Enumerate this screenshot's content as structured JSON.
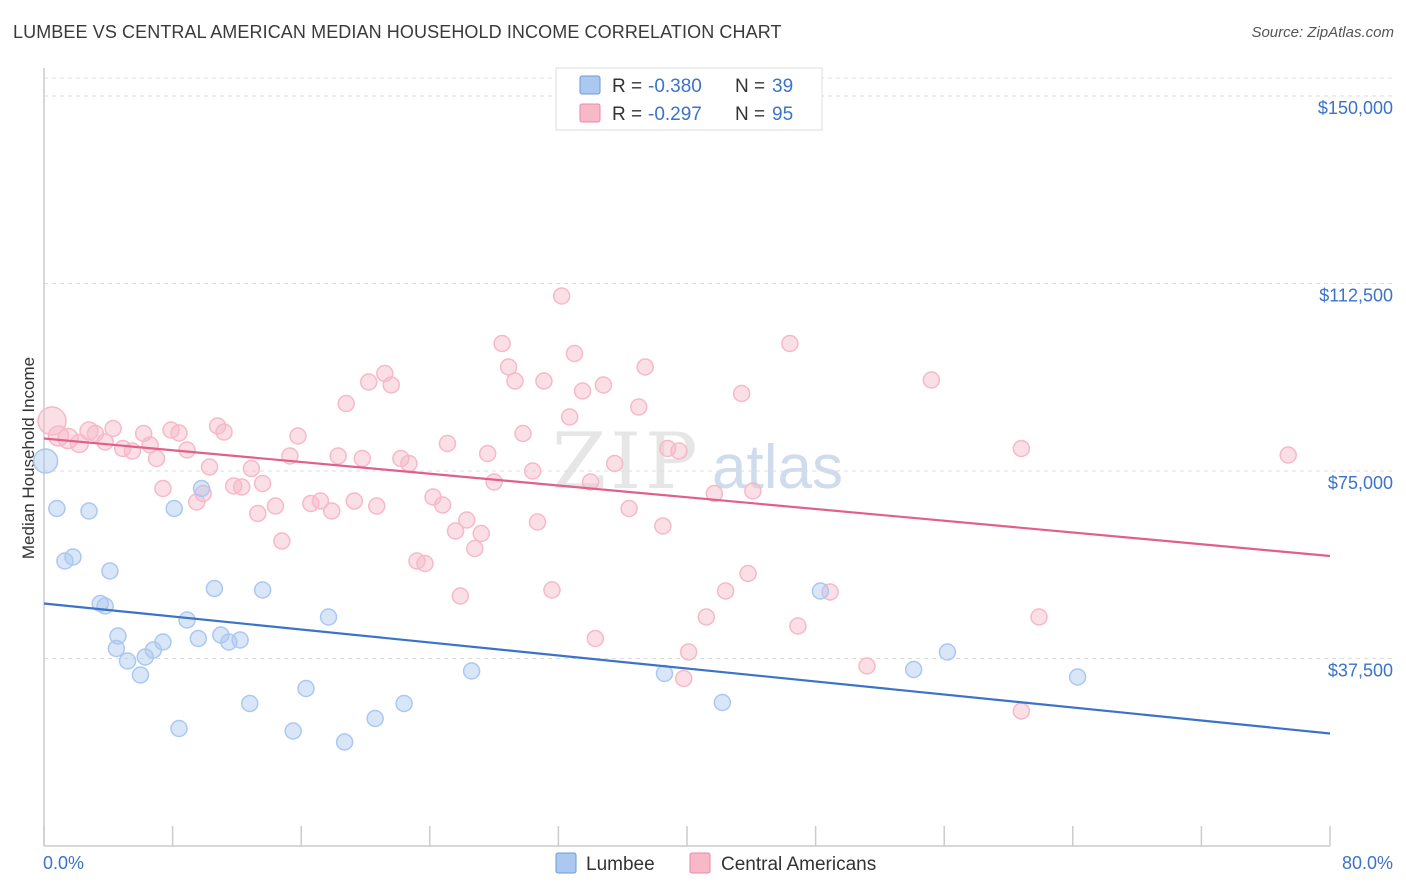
{
  "header": {
    "title": "LUMBEE VS CENTRAL AMERICAN MEDIAN HOUSEHOLD INCOME CORRELATION CHART",
    "source": "Source: ZipAtlas.com"
  },
  "watermark": {
    "zip": "ZIP",
    "atlas": "atlas"
  },
  "legend_top": {
    "rows": [
      {
        "r_label": "R = ",
        "r_value": "-0.380",
        "n_label": "N = ",
        "n_value": "39",
        "color": "#aac8f0"
      },
      {
        "r_label": "R = ",
        "r_value": "-0.297",
        "n_label": "N = ",
        "n_value": "95",
        "color": "#f7b8c8"
      }
    ]
  },
  "legend_bottom": {
    "items": [
      {
        "label": "Lumbee",
        "color": "#aac8f0"
      },
      {
        "label": "Central Americans",
        "color": "#f7b8c8"
      }
    ]
  },
  "chart_data": {
    "type": "scatter",
    "title": "LUMBEE VS CENTRAL AMERICAN MEDIAN HOUSEHOLD INCOME CORRELATION CHART",
    "xlabel": "",
    "ylabel": "Median Household Income",
    "xlim": [
      0,
      80
    ],
    "ylim": [
      0,
      155000
    ],
    "x_tick_labels": [
      "0.0%",
      "80.0%"
    ],
    "y_ticks": [
      37500,
      75000,
      112500,
      150000
    ],
    "y_tick_labels": [
      "$37,500",
      "$75,000",
      "$112,500",
      "$150,000"
    ],
    "grid": true,
    "legend_position": "top-center",
    "series": [
      {
        "name": "Lumbee",
        "color": "#3b73c9",
        "fill": "#aac8f0",
        "r": -0.38,
        "n": 39,
        "trend": {
          "x": [
            0,
            80
          ],
          "y": [
            48500,
            22500
          ]
        },
        "points": [
          [
            0.1,
            77000,
            24
          ],
          [
            0.8,
            67500,
            16
          ],
          [
            2.8,
            67000,
            16
          ],
          [
            1.3,
            57000,
            16
          ],
          [
            1.8,
            57800,
            16
          ],
          [
            4.1,
            55000,
            16
          ],
          [
            3.5,
            48500,
            16
          ],
          [
            3.8,
            48000,
            16
          ],
          [
            4.6,
            42000,
            16
          ],
          [
            4.5,
            39500,
            16
          ],
          [
            5.2,
            37000,
            16
          ],
          [
            6.0,
            34200,
            16
          ],
          [
            6.3,
            37800,
            16
          ],
          [
            6.8,
            39200,
            16
          ],
          [
            7.4,
            40800,
            16
          ],
          [
            8.1,
            67500,
            16
          ],
          [
            8.4,
            23500,
            16
          ],
          [
            8.9,
            45200,
            16
          ],
          [
            9.6,
            41500,
            16
          ],
          [
            9.8,
            71500,
            16
          ],
          [
            10.6,
            51500,
            16
          ],
          [
            11.0,
            42200,
            16
          ],
          [
            11.5,
            40800,
            16
          ],
          [
            12.2,
            41200,
            16
          ],
          [
            12.8,
            28500,
            16
          ],
          [
            13.6,
            51200,
            16
          ],
          [
            15.5,
            23000,
            16
          ],
          [
            16.3,
            31500,
            16
          ],
          [
            17.7,
            45800,
            16
          ],
          [
            18.7,
            20800,
            16
          ],
          [
            20.6,
            25500,
            16
          ],
          [
            22.4,
            28500,
            16
          ],
          [
            26.6,
            35000,
            16
          ],
          [
            38.6,
            34500,
            16
          ],
          [
            42.2,
            28700,
            16
          ],
          [
            48.3,
            51000,
            16
          ],
          [
            54.1,
            35300,
            16
          ],
          [
            56.2,
            38800,
            16
          ],
          [
            64.3,
            33800,
            16
          ]
        ]
      },
      {
        "name": "Central Americans",
        "color": "#e0608a",
        "fill": "#f7b8c8",
        "r": -0.297,
        "n": 95,
        "trend": {
          "x": [
            0,
            80
          ],
          "y": [
            81500,
            58000
          ]
        },
        "points": [
          [
            0.5,
            85000,
            28
          ],
          [
            0.9,
            82000,
            20
          ],
          [
            1.5,
            81500,
            20
          ],
          [
            2.2,
            80500,
            18
          ],
          [
            2.8,
            83000,
            18
          ],
          [
            3.2,
            82500,
            16
          ],
          [
            3.8,
            80800,
            16
          ],
          [
            4.3,
            83500,
            16
          ],
          [
            4.9,
            79500,
            16
          ],
          [
            5.5,
            79000,
            16
          ],
          [
            6.2,
            82500,
            16
          ],
          [
            6.6,
            80200,
            16
          ],
          [
            7.0,
            77500,
            16
          ],
          [
            7.4,
            71500,
            16
          ],
          [
            7.9,
            83200,
            16
          ],
          [
            8.4,
            82600,
            16
          ],
          [
            8.9,
            79200,
            16
          ],
          [
            9.5,
            68800,
            16
          ],
          [
            9.9,
            70500,
            16
          ],
          [
            10.3,
            75800,
            16
          ],
          [
            10.8,
            84000,
            16
          ],
          [
            11.2,
            82800,
            16
          ],
          [
            11.8,
            72000,
            16
          ],
          [
            12.3,
            71800,
            16
          ],
          [
            12.9,
            75500,
            16
          ],
          [
            13.3,
            66500,
            16
          ],
          [
            13.6,
            72500,
            16
          ],
          [
            14.4,
            68000,
            16
          ],
          [
            14.8,
            61000,
            16
          ],
          [
            15.3,
            78000,
            16
          ],
          [
            15.8,
            82000,
            16
          ],
          [
            16.6,
            68500,
            16
          ],
          [
            17.2,
            69000,
            16
          ],
          [
            17.9,
            67000,
            16
          ],
          [
            18.3,
            78000,
            16
          ],
          [
            18.8,
            88500,
            16
          ],
          [
            19.3,
            69000,
            16
          ],
          [
            19.8,
            77500,
            16
          ],
          [
            20.2,
            92800,
            16
          ],
          [
            20.7,
            68000,
            16
          ],
          [
            21.2,
            94500,
            16
          ],
          [
            21.6,
            92200,
            16
          ],
          [
            22.2,
            77500,
            16
          ],
          [
            22.7,
            76500,
            16
          ],
          [
            23.2,
            57000,
            16
          ],
          [
            23.7,
            56500,
            16
          ],
          [
            24.2,
            69800,
            16
          ],
          [
            24.8,
            68200,
            16
          ],
          [
            25.1,
            80500,
            16
          ],
          [
            25.6,
            63000,
            16
          ],
          [
            25.9,
            50000,
            16
          ],
          [
            26.3,
            65200,
            16
          ],
          [
            26.8,
            59500,
            16
          ],
          [
            27.2,
            62500,
            16
          ],
          [
            27.6,
            78500,
            16
          ],
          [
            28.0,
            72800,
            16
          ],
          [
            28.5,
            100500,
            16
          ],
          [
            28.9,
            95800,
            16
          ],
          [
            29.3,
            93000,
            16
          ],
          [
            29.8,
            82500,
            16
          ],
          [
            30.4,
            75000,
            16
          ],
          [
            30.7,
            64800,
            16
          ],
          [
            31.1,
            93000,
            16
          ],
          [
            31.6,
            51200,
            16
          ],
          [
            32.2,
            110000,
            16
          ],
          [
            32.7,
            85800,
            16
          ],
          [
            33.0,
            98500,
            16
          ],
          [
            33.5,
            91000,
            16
          ],
          [
            34.0,
            72800,
            16
          ],
          [
            34.3,
            41500,
            16
          ],
          [
            34.8,
            92200,
            16
          ],
          [
            35.5,
            76500,
            16
          ],
          [
            36.4,
            67500,
            16
          ],
          [
            37.0,
            87800,
            16
          ],
          [
            37.4,
            95800,
            16
          ],
          [
            38.5,
            64000,
            16
          ],
          [
            38.8,
            79500,
            16
          ],
          [
            39.5,
            79000,
            16
          ],
          [
            39.8,
            33500,
            16
          ],
          [
            40.1,
            38800,
            16
          ],
          [
            41.2,
            45800,
            16
          ],
          [
            41.7,
            70500,
            16
          ],
          [
            42.4,
            51000,
            16
          ],
          [
            43.4,
            90500,
            16
          ],
          [
            43.8,
            54500,
            16
          ],
          [
            44.1,
            71000,
            16
          ],
          [
            46.4,
            100500,
            16
          ],
          [
            46.9,
            44000,
            16
          ],
          [
            48.9,
            50800,
            16
          ],
          [
            51.2,
            36000,
            16
          ],
          [
            55.2,
            93200,
            16
          ],
          [
            60.8,
            27000,
            16
          ],
          [
            60.8,
            79500,
            16
          ],
          [
            61.9,
            45800,
            16
          ],
          [
            77.4,
            78200,
            16
          ]
        ]
      }
    ]
  }
}
